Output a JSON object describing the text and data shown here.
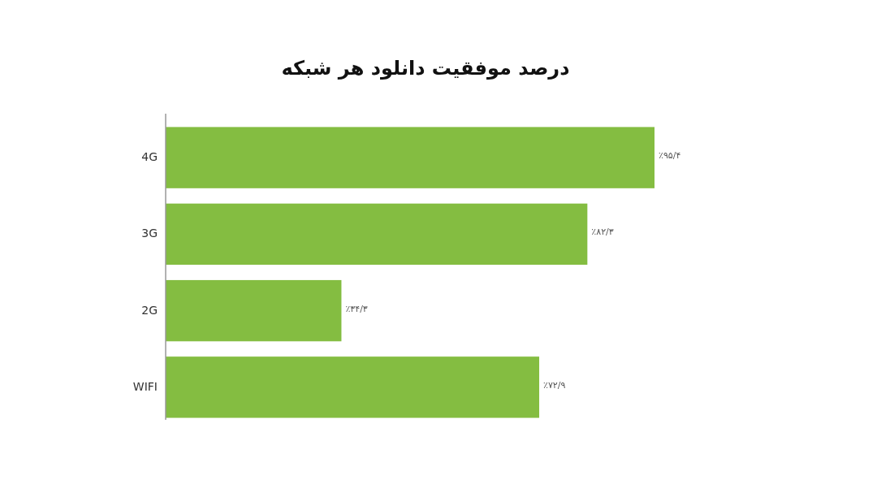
{
  "chart_data": {
    "type": "bar",
    "orientation": "horizontal",
    "title": "درصد موفقیت دانلود هر شبکه",
    "categories": [
      "4G",
      "3G",
      "2G",
      "WIFI"
    ],
    "values": [
      95.4,
      82.3,
      34.3,
      72.9
    ],
    "value_labels": [
      "٪۹۵/۴",
      "٪۸۲/۳",
      "٪۳۴/۳",
      "٪۷۲/۹"
    ],
    "color": "#84bd41"
  }
}
